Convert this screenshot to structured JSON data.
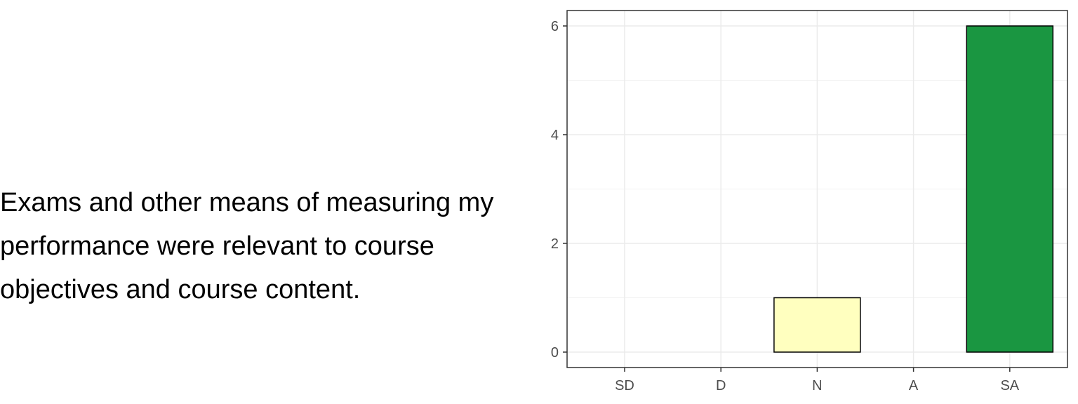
{
  "question": {
    "lines": [
      "Exams and other means of measuring my",
      "performance were relevant to course",
      "objectives and course content."
    ]
  },
  "chart_data": {
    "type": "bar",
    "categories": [
      "SD",
      "D",
      "N",
      "A",
      "SA"
    ],
    "values": [
      0,
      0,
      1,
      0,
      6
    ],
    "colors": [
      "#d7191c",
      "#fdae61",
      "#ffffbf",
      "#a6d96a",
      "#1a9641"
    ],
    "title": "",
    "xlabel": "",
    "ylabel": "",
    "ylim": [
      0,
      6
    ],
    "yticks": [
      0,
      2,
      4,
      6
    ],
    "yticks_labels": [
      "0",
      "2",
      "4",
      "6"
    ],
    "grid": true,
    "legend": "none"
  }
}
